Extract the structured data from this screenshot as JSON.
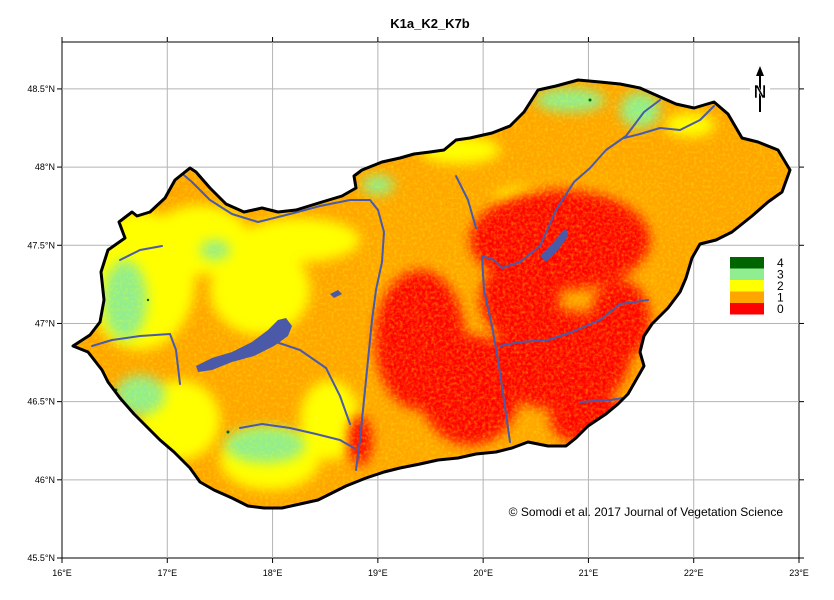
{
  "title": "K1a_K2_K7b",
  "copyright": "© Somodi et al. 2017 Journal of Vegetation Science",
  "north_arrow": {
    "icon": "north-arrow-icon",
    "letter": "N"
  },
  "chart_data": {
    "type": "heatmap",
    "title": "K1a_K2_K7b",
    "lon_range": [
      16,
      23
    ],
    "lat_range": [
      45.5,
      48.8
    ],
    "lon_ticks": [
      16,
      17,
      18,
      19,
      20,
      21,
      22,
      23
    ],
    "lon_tick_labels": [
      "16°E",
      "17°E",
      "18°E",
      "19°E",
      "20°E",
      "21°E",
      "22°E",
      "23°E"
    ],
    "lat_ticks": [
      45.5,
      46,
      46.5,
      47,
      47.5,
      48,
      48.5
    ],
    "lat_tick_labels": [
      "45.5°N",
      "46°N",
      "46.5°N",
      "47°N",
      "47.5°N",
      "48°N",
      "48.5°N"
    ],
    "grid": true,
    "legend_position": "right",
    "legend": [
      {
        "label": "4",
        "color": "#006400"
      },
      {
        "label": "3",
        "color": "#90ee90"
      },
      {
        "label": "2",
        "color": "#ffff00"
      },
      {
        "label": "1",
        "color": "#ffa500"
      },
      {
        "label": "0",
        "color": "#ff0000"
      }
    ],
    "water_color": "#4a5aa8",
    "border_color": "#000000"
  }
}
